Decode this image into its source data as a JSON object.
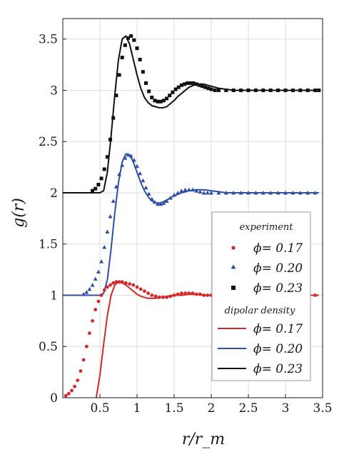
{
  "chart_data": {
    "type": "scatter",
    "xlabel": "r/r_m",
    "ylabel": "g(r)",
    "xlim": [
      0,
      3.5
    ],
    "ylim": [
      0,
      3.7
    ],
    "grid": true,
    "x_ticks": [
      {
        "v": 0.5,
        "label": "0.5"
      },
      {
        "v": 1,
        "label": "1"
      },
      {
        "v": 1.5,
        "label": "1.5"
      },
      {
        "v": 2,
        "label": "2"
      },
      {
        "v": 2.5,
        "label": "2.5"
      },
      {
        "v": 3,
        "label": "3"
      },
      {
        "v": 3.5,
        "label": "3.5"
      }
    ],
    "y_ticks": [
      {
        "v": 0,
        "label": "0"
      },
      {
        "v": 0.5,
        "label": "0.5"
      },
      {
        "v": 1,
        "label": "1"
      },
      {
        "v": 1.5,
        "label": "1.5"
      },
      {
        "v": 2,
        "label": "2"
      },
      {
        "v": 2.5,
        "label": "2.5"
      },
      {
        "v": 3,
        "label": "3"
      },
      {
        "v": 3.5,
        "label": "3.5"
      }
    ],
    "legend": {
      "placement": "bottom-right",
      "experiment_heading": "experiment",
      "theory_heading": "dipolar density",
      "experiment_entries": [
        {
          "label": "ϕ= 0.17",
          "marker": "circle",
          "color": "#d62728"
        },
        {
          "label": "ϕ= 0.20",
          "marker": "triangle",
          "color": "#2e4fa8"
        },
        {
          "label": "ϕ= 0.23",
          "marker": "square",
          "color": "#111111"
        }
      ],
      "theory_entries": [
        {
          "label": "ϕ= 0.17",
          "color": "#d62728"
        },
        {
          "label": "ϕ= 0.20",
          "color": "#2e4fa8"
        },
        {
          "label": "ϕ= 0.23",
          "color": "#111111"
        }
      ]
    },
    "experiment_series": [
      {
        "label": "ϕ= 0.17",
        "marker": "circle",
        "color": "#d62728",
        "x": [
          0.04,
          0.08,
          0.12,
          0.16,
          0.2,
          0.24,
          0.28,
          0.32,
          0.36,
          0.4,
          0.44,
          0.48,
          0.52,
          0.56,
          0.6,
          0.64,
          0.68,
          0.72,
          0.76,
          0.8,
          0.85,
          0.9,
          0.95,
          1.0,
          1.05,
          1.1,
          1.15,
          1.2,
          1.25,
          1.3,
          1.35,
          1.4,
          1.45,
          1.5,
          1.55,
          1.6,
          1.65,
          1.7,
          1.75,
          1.8,
          1.85,
          1.9,
          1.95,
          2.0,
          2.1,
          2.2,
          2.3,
          2.4,
          2.5,
          2.6,
          2.7,
          2.8,
          2.9,
          3.0,
          3.1,
          3.2,
          3.3,
          3.4
        ],
        "y": [
          0.02,
          0.04,
          0.07,
          0.11,
          0.17,
          0.26,
          0.37,
          0.5,
          0.63,
          0.75,
          0.86,
          0.94,
          1.0,
          1.05,
          1.08,
          1.1,
          1.12,
          1.13,
          1.13,
          1.13,
          1.12,
          1.11,
          1.1,
          1.08,
          1.06,
          1.04,
          1.02,
          1.0,
          0.99,
          0.98,
          0.98,
          0.98,
          0.99,
          1.0,
          1.01,
          1.02,
          1.02,
          1.02,
          1.02,
          1.01,
          1.01,
          1.0,
          1.0,
          1.0,
          1.0,
          1.0,
          1.0,
          1.0,
          1.0,
          1.0,
          1.0,
          1.0,
          1.0,
          1.0,
          1.0,
          1.0,
          1.0,
          1.0
        ]
      },
      {
        "label": "ϕ= 0.20",
        "marker": "triangle",
        "color": "#2e4fa8",
        "x": [
          0.28,
          0.32,
          0.36,
          0.4,
          0.44,
          0.48,
          0.52,
          0.56,
          0.6,
          0.64,
          0.68,
          0.72,
          0.76,
          0.8,
          0.84,
          0.88,
          0.92,
          0.96,
          1.0,
          1.04,
          1.08,
          1.12,
          1.16,
          1.2,
          1.24,
          1.28,
          1.32,
          1.36,
          1.4,
          1.45,
          1.5,
          1.55,
          1.6,
          1.65,
          1.7,
          1.75,
          1.8,
          1.85,
          1.9,
          1.95,
          2.0,
          2.1,
          2.2,
          2.3,
          2.4,
          2.5,
          2.6,
          2.7,
          2.8,
          2.9,
          3.0,
          3.1,
          3.2,
          3.3,
          3.4
        ],
        "y": [
          2.01,
          2.03,
          2.06,
          2.1,
          2.16,
          2.23,
          2.33,
          2.47,
          2.62,
          2.77,
          2.92,
          3.06,
          3.18,
          3.27,
          3.34,
          3.37,
          3.36,
          3.32,
          3.26,
          3.19,
          3.12,
          3.05,
          2.99,
          2.94,
          2.91,
          2.89,
          2.89,
          2.9,
          2.92,
          2.95,
          2.98,
          3.0,
          3.02,
          3.03,
          3.03,
          3.03,
          3.02,
          3.01,
          3.0,
          3.0,
          3.0,
          3.0,
          3.0,
          3.0,
          3.0,
          3.0,
          3.0,
          3.0,
          3.0,
          3.0,
          3.0,
          3.0,
          3.0,
          3.0,
          3.0
        ],
        "offset": -1
      },
      {
        "label": "ϕ= 0.23",
        "marker": "square",
        "color": "#111111",
        "x": [
          0.4,
          0.44,
          0.48,
          0.52,
          0.56,
          0.6,
          0.64,
          0.68,
          0.72,
          0.76,
          0.8,
          0.84,
          0.88,
          0.92,
          0.96,
          1.0,
          1.04,
          1.08,
          1.12,
          1.16,
          1.2,
          1.24,
          1.28,
          1.32,
          1.36,
          1.4,
          1.44,
          1.48,
          1.52,
          1.56,
          1.6,
          1.64,
          1.68,
          1.72,
          1.76,
          1.8,
          1.84,
          1.88,
          1.92,
          1.96,
          2.0,
          2.05,
          2.1,
          2.2,
          2.3,
          2.4,
          2.5,
          2.6,
          2.7,
          2.8,
          2.9,
          3.0,
          3.1,
          3.2,
          3.3,
          3.4,
          3.45
        ],
        "y": [
          2.02,
          2.04,
          2.08,
          2.14,
          2.23,
          2.35,
          2.52,
          2.73,
          2.95,
          3.15,
          3.32,
          3.44,
          3.51,
          3.53,
          3.49,
          3.41,
          3.3,
          3.18,
          3.07,
          2.99,
          2.93,
          2.9,
          2.89,
          2.89,
          2.9,
          2.92,
          2.95,
          2.98,
          3.01,
          3.03,
          3.05,
          3.06,
          3.07,
          3.07,
          3.07,
          3.06,
          3.05,
          3.04,
          3.03,
          3.02,
          3.01,
          3.0,
          3.0,
          3.0,
          3.0,
          3.0,
          3.0,
          3.0,
          3.0,
          3.0,
          3.0,
          3.0,
          3.0,
          3.0,
          3.0,
          3.0,
          3.0
        ]
      }
    ],
    "theory_series": [
      {
        "label": "ϕ= 0.17",
        "color": "#d62728",
        "x": [
          0.45,
          0.5,
          0.55,
          0.6,
          0.65,
          0.7,
          0.75,
          0.8,
          0.85,
          0.9,
          0.95,
          1.0,
          1.05,
          1.1,
          1.15,
          1.2,
          1.25,
          1.3,
          1.35,
          1.4,
          1.45,
          1.5,
          1.6,
          1.7,
          1.8,
          1.9,
          2.0,
          2.2,
          2.4,
          2.6,
          2.8,
          3.0,
          3.2,
          3.45
        ],
        "y": [
          0.0,
          0.22,
          0.52,
          0.8,
          1.0,
          1.1,
          1.13,
          1.12,
          1.1,
          1.07,
          1.04,
          1.01,
          0.99,
          0.98,
          0.97,
          0.97,
          0.97,
          0.98,
          0.98,
          0.99,
          0.99,
          1.0,
          1.0,
          1.01,
          1.01,
          1.0,
          1.0,
          1.0,
          1.0,
          1.0,
          1.0,
          1.0,
          1.0,
          1.0
        ]
      },
      {
        "label": "ϕ= 0.20",
        "color": "#2e4fa8",
        "x": [
          0.0,
          0.5,
          0.55,
          0.6,
          0.65,
          0.7,
          0.75,
          0.8,
          0.85,
          0.9,
          0.95,
          1.0,
          1.05,
          1.1,
          1.15,
          1.2,
          1.25,
          1.3,
          1.35,
          1.4,
          1.45,
          1.5,
          1.6,
          1.7,
          1.8,
          1.9,
          2.0,
          2.1,
          2.2,
          2.4,
          2.6,
          2.8,
          3.0,
          3.2,
          3.45
        ],
        "y": [
          1.0,
          1.0,
          1.02,
          1.15,
          1.45,
          1.8,
          2.1,
          2.3,
          2.38,
          2.37,
          2.3,
          2.2,
          2.1,
          2.02,
          1.96,
          1.92,
          1.9,
          1.9,
          1.91,
          1.93,
          1.95,
          1.97,
          2.0,
          2.02,
          2.03,
          2.03,
          2.02,
          2.01,
          2.0,
          2.0,
          2.0,
          2.0,
          2.0,
          2.0,
          2.0
        ]
      },
      {
        "label": "ϕ= 0.23",
        "color": "#111111",
        "x": [
          0.0,
          0.5,
          0.55,
          0.6,
          0.65,
          0.7,
          0.75,
          0.8,
          0.85,
          0.9,
          0.95,
          1.0,
          1.05,
          1.1,
          1.15,
          1.2,
          1.25,
          1.3,
          1.35,
          1.4,
          1.45,
          1.5,
          1.55,
          1.6,
          1.7,
          1.8,
          1.9,
          2.0,
          2.1,
          2.2,
          2.3,
          2.5,
          2.8,
          3.0,
          3.2,
          3.45
        ],
        "y": [
          2.0,
          2.0,
          2.02,
          2.2,
          2.55,
          2.95,
          3.3,
          3.5,
          3.53,
          3.45,
          3.3,
          3.15,
          3.02,
          2.93,
          2.88,
          2.85,
          2.84,
          2.83,
          2.83,
          2.84,
          2.87,
          2.9,
          2.94,
          2.97,
          3.03,
          3.06,
          3.06,
          3.04,
          3.02,
          3.01,
          3.0,
          3.0,
          3.0,
          3.0,
          3.0,
          3.0
        ]
      }
    ]
  }
}
